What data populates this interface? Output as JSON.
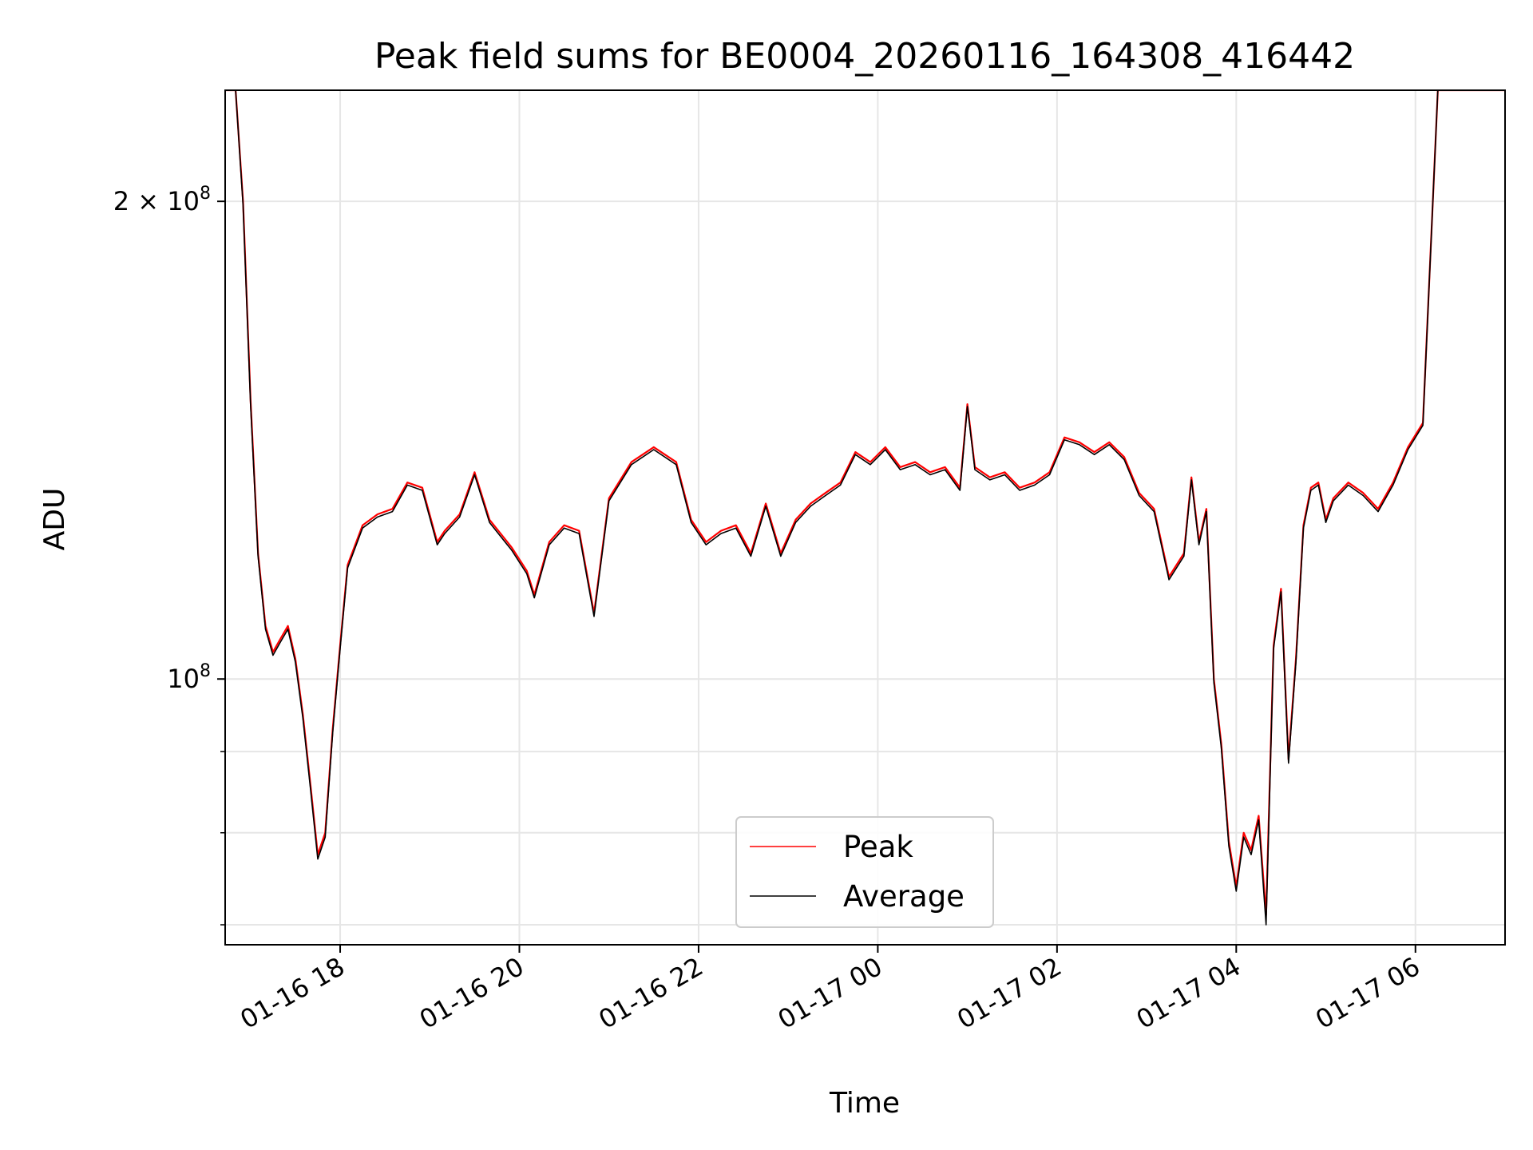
{
  "chart_data": {
    "type": "line",
    "title": "Peak field sums for BE0004_20260116_164308_416442",
    "xlabel": "Time",
    "ylabel": "ADU",
    "yscale": "log",
    "grid": true,
    "legend_placement": "lower center",
    "x_range": [
      "2026-01-16 16:43",
      "2026-01-17 07:00"
    ],
    "ylim": [
      68000000,
      235000000
    ],
    "x_ticks": [
      {
        "value": "2026-01-16 18:00",
        "label": "01-16 18"
      },
      {
        "value": "2026-01-16 20:00",
        "label": "01-16 20"
      },
      {
        "value": "2026-01-16 22:00",
        "label": "01-16 22"
      },
      {
        "value": "2026-01-17 00:00",
        "label": "01-17 00"
      },
      {
        "value": "2026-01-17 02:00",
        "label": "01-17 02"
      },
      {
        "value": "2026-01-17 04:00",
        "label": "01-17 04"
      },
      {
        "value": "2026-01-17 06:00",
        "label": "01-17 06"
      }
    ],
    "y_ticks": [
      {
        "value": 100000000,
        "base": "10",
        "exp": "8",
        "coef": ""
      },
      {
        "value": 200000000,
        "base": "10",
        "exp": "8",
        "coef": "2 × "
      }
    ],
    "y_minor_ticks": [
      70000000,
      80000000,
      90000000
    ],
    "series": [
      {
        "name": "Peak",
        "color": "#ff0000",
        "x": [
          "2026-01-16 16:43",
          "2026-01-16 16:50",
          "2026-01-16 16:55",
          "2026-01-16 17:00",
          "2026-01-16 17:05",
          "2026-01-16 17:10",
          "2026-01-16 17:15",
          "2026-01-16 17:20",
          "2026-01-16 17:25",
          "2026-01-16 17:30",
          "2026-01-16 17:35",
          "2026-01-16 17:40",
          "2026-01-16 17:45",
          "2026-01-16 17:50",
          "2026-01-16 17:55",
          "2026-01-16 18:00",
          "2026-01-16 18:05",
          "2026-01-16 18:15",
          "2026-01-16 18:25",
          "2026-01-16 18:35",
          "2026-01-16 18:45",
          "2026-01-16 18:55",
          "2026-01-16 19:05",
          "2026-01-16 19:10",
          "2026-01-16 19:20",
          "2026-01-16 19:30",
          "2026-01-16 19:40",
          "2026-01-16 19:55",
          "2026-01-16 20:05",
          "2026-01-16 20:10",
          "2026-01-16 20:20",
          "2026-01-16 20:30",
          "2026-01-16 20:40",
          "2026-01-16 20:50",
          "2026-01-16 21:00",
          "2026-01-16 21:15",
          "2026-01-16 21:30",
          "2026-01-16 21:45",
          "2026-01-16 21:55",
          "2026-01-16 22:05",
          "2026-01-16 22:15",
          "2026-01-16 22:25",
          "2026-01-16 22:35",
          "2026-01-16 22:45",
          "2026-01-16 22:55",
          "2026-01-16 23:05",
          "2026-01-16 23:15",
          "2026-01-16 23:25",
          "2026-01-16 23:35",
          "2026-01-16 23:45",
          "2026-01-16 23:55",
          "2026-01-17 00:05",
          "2026-01-17 00:15",
          "2026-01-17 00:25",
          "2026-01-17 00:35",
          "2026-01-17 00:45",
          "2026-01-17 00:55",
          "2026-01-17 01:00",
          "2026-01-17 01:05",
          "2026-01-17 01:15",
          "2026-01-17 01:25",
          "2026-01-17 01:35",
          "2026-01-17 01:45",
          "2026-01-17 01:55",
          "2026-01-17 02:05",
          "2026-01-17 02:15",
          "2026-01-17 02:25",
          "2026-01-17 02:35",
          "2026-01-17 02:45",
          "2026-01-17 02:55",
          "2026-01-17 03:05",
          "2026-01-17 03:15",
          "2026-01-17 03:25",
          "2026-01-17 03:30",
          "2026-01-17 03:35",
          "2026-01-17 03:40",
          "2026-01-17 03:45",
          "2026-01-17 03:50",
          "2026-01-17 03:55",
          "2026-01-17 04:00",
          "2026-01-17 04:05",
          "2026-01-17 04:10",
          "2026-01-17 04:15",
          "2026-01-17 04:20",
          "2026-01-17 04:25",
          "2026-01-17 04:30",
          "2026-01-17 04:35",
          "2026-01-17 04:40",
          "2026-01-17 04:45",
          "2026-01-17 04:50",
          "2026-01-17 04:55",
          "2026-01-17 05:00",
          "2026-01-17 05:05",
          "2026-01-17 05:15",
          "2026-01-17 05:25",
          "2026-01-17 05:35",
          "2026-01-17 05:45",
          "2026-01-17 05:55",
          "2026-01-17 06:05",
          "2026-01-17 06:15",
          "2026-01-17 06:20",
          "2026-01-17 06:25",
          "2026-01-17 06:30",
          "2026-01-17 06:35",
          "2026-01-17 06:40",
          "2026-01-17 07:00"
        ],
        "values": [
          235000000,
          235000000,
          200000000,
          150000000,
          120000000,
          108000000,
          104000000,
          106000000,
          108000000,
          103000000,
          95000000,
          86000000,
          77500000,
          80000000,
          93000000,
          105000000,
          118000000,
          125000000,
          127000000,
          128000000,
          133000000,
          132000000,
          122000000,
          124000000,
          127000000,
          135000000,
          126000000,
          121000000,
          117000000,
          113000000,
          122000000,
          125000000,
          124000000,
          110000000,
          130000000,
          137000000,
          140000000,
          137000000,
          126000000,
          122000000,
          124000000,
          125000000,
          120000000,
          129000000,
          120000000,
          126000000,
          129000000,
          131000000,
          133000000,
          139000000,
          137000000,
          140000000,
          136000000,
          137000000,
          135000000,
          136000000,
          132000000,
          149000000,
          136000000,
          134000000,
          135000000,
          132000000,
          133000000,
          135000000,
          142000000,
          141000000,
          139000000,
          141000000,
          138000000,
          131000000,
          128000000,
          116000000,
          120000000,
          134000000,
          122000000,
          128000000,
          100000000,
          91000000,
          79000000,
          74000000,
          80000000,
          78000000,
          82000000,
          71000000,
          105000000,
          114000000,
          89000000,
          103000000,
          125000000,
          132000000,
          133000000,
          126000000,
          130000000,
          133000000,
          131000000,
          128000000,
          133000000,
          140000000,
          145000000,
          235000000,
          235000000,
          235000000,
          235000000,
          235000000,
          235000000,
          235000000
        ],
        "note_marker_count": 0
      },
      {
        "name": "Average",
        "color": "#000000",
        "x": [
          "2026-01-16 16:43",
          "2026-01-16 16:50",
          "2026-01-16 16:55",
          "2026-01-16 17:00",
          "2026-01-16 17:05",
          "2026-01-16 17:10",
          "2026-01-16 17:15",
          "2026-01-16 17:20",
          "2026-01-16 17:25",
          "2026-01-16 17:30",
          "2026-01-16 17:35",
          "2026-01-16 17:40",
          "2026-01-16 17:45",
          "2026-01-16 17:50",
          "2026-01-16 17:55",
          "2026-01-16 18:00",
          "2026-01-16 18:05",
          "2026-01-16 18:15",
          "2026-01-16 18:25",
          "2026-01-16 18:35",
          "2026-01-16 18:45",
          "2026-01-16 18:55",
          "2026-01-16 19:05",
          "2026-01-16 19:10",
          "2026-01-16 19:20",
          "2026-01-16 19:30",
          "2026-01-16 19:40",
          "2026-01-16 19:55",
          "2026-01-16 20:05",
          "2026-01-16 20:10",
          "2026-01-16 20:20",
          "2026-01-16 20:30",
          "2026-01-16 20:40",
          "2026-01-16 20:50",
          "2026-01-16 21:00",
          "2026-01-16 21:15",
          "2026-01-16 21:30",
          "2026-01-16 21:45",
          "2026-01-16 21:55",
          "2026-01-16 22:05",
          "2026-01-16 22:15",
          "2026-01-16 22:25",
          "2026-01-16 22:35",
          "2026-01-16 22:45",
          "2026-01-16 22:55",
          "2026-01-16 23:05",
          "2026-01-16 23:15",
          "2026-01-16 23:25",
          "2026-01-16 23:35",
          "2026-01-16 23:45",
          "2026-01-16 23:55",
          "2026-01-17 00:05",
          "2026-01-17 00:15",
          "2026-01-17 00:25",
          "2026-01-17 00:35",
          "2026-01-17 00:45",
          "2026-01-17 00:55",
          "2026-01-17 01:00",
          "2026-01-17 01:05",
          "2026-01-17 01:15",
          "2026-01-17 01:25",
          "2026-01-17 01:35",
          "2026-01-17 01:45",
          "2026-01-17 01:55",
          "2026-01-17 02:05",
          "2026-01-17 02:15",
          "2026-01-17 02:25",
          "2026-01-17 02:35",
          "2026-01-17 02:45",
          "2026-01-17 02:55",
          "2026-01-17 03:05",
          "2026-01-17 03:15",
          "2026-01-17 03:25",
          "2026-01-17 03:30",
          "2026-01-17 03:35",
          "2026-01-17 03:40",
          "2026-01-17 03:45",
          "2026-01-17 03:50",
          "2026-01-17 03:55",
          "2026-01-17 04:00",
          "2026-01-17 04:05",
          "2026-01-17 04:10",
          "2026-01-17 04:15",
          "2026-01-17 04:20",
          "2026-01-17 04:25",
          "2026-01-17 04:30",
          "2026-01-17 04:35",
          "2026-01-17 04:40",
          "2026-01-17 04:45",
          "2026-01-17 04:50",
          "2026-01-17 04:55",
          "2026-01-17 05:00",
          "2026-01-17 05:05",
          "2026-01-17 05:15",
          "2026-01-17 05:25",
          "2026-01-17 05:35",
          "2026-01-17 05:45",
          "2026-01-17 05:55",
          "2026-01-17 06:05",
          "2026-01-17 06:15",
          "2026-01-17 06:20",
          "2026-01-17 06:25",
          "2026-01-17 06:30",
          "2026-01-17 06:35",
          "2026-01-17 06:40",
          "2026-01-17 07:00"
        ],
        "values": [
          235000000,
          235000000,
          199000000,
          149000000,
          119500000,
          107500000,
          103500000,
          105500000,
          107500000,
          102500000,
          94500000,
          85500000,
          77000000,
          79500000,
          92500000,
          104500000,
          117500000,
          124500000,
          126500000,
          127500000,
          132500000,
          131500000,
          121500000,
          123500000,
          126500000,
          134500000,
          125500000,
          120500000,
          116500000,
          112500000,
          121500000,
          124500000,
          123500000,
          109500000,
          129500000,
          136500000,
          139500000,
          136500000,
          125500000,
          121500000,
          123500000,
          124500000,
          119500000,
          128500000,
          119500000,
          125500000,
          128500000,
          130500000,
          132500000,
          138500000,
          136500000,
          139500000,
          135500000,
          136500000,
          134500000,
          135500000,
          131500000,
          148500000,
          135500000,
          133500000,
          134500000,
          131500000,
          132500000,
          134500000,
          141500000,
          140500000,
          138500000,
          140500000,
          137500000,
          130500000,
          127500000,
          115500000,
          119500000,
          133500000,
          121500000,
          127500000,
          99500000,
          90500000,
          78500000,
          73500000,
          79500000,
          77500000,
          81500000,
          70000000,
          104500000,
          113500000,
          88500000,
          102500000,
          124500000,
          131500000,
          132500000,
          125500000,
          129500000,
          132500000,
          130500000,
          127500000,
          132500000,
          139500000,
          144500000,
          235000000,
          235000000,
          235000000,
          235000000,
          235000000,
          235000000,
          235000000
        ]
      }
    ]
  }
}
